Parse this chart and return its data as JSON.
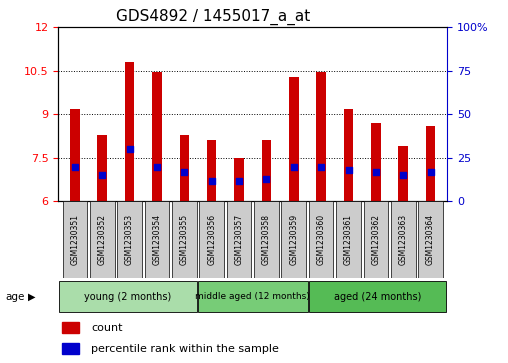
{
  "title": "GDS4892 / 1455017_a_at",
  "samples": [
    "GSM1230351",
    "GSM1230352",
    "GSM1230353",
    "GSM1230354",
    "GSM1230355",
    "GSM1230356",
    "GSM1230357",
    "GSM1230358",
    "GSM1230359",
    "GSM1230360",
    "GSM1230361",
    "GSM1230362",
    "GSM1230363",
    "GSM1230364"
  ],
  "count_values": [
    9.2,
    8.3,
    10.8,
    10.45,
    8.3,
    8.1,
    7.5,
    8.1,
    10.3,
    10.45,
    9.2,
    8.7,
    7.9,
    8.6
  ],
  "percentile_values": [
    20,
    15,
    30,
    20,
    17,
    12,
    12,
    13,
    20,
    20,
    18,
    17,
    15,
    17
  ],
  "ylim_left": [
    6,
    12
  ],
  "ylim_right": [
    0,
    100
  ],
  "yticks_left": [
    6,
    7.5,
    9,
    10.5,
    12
  ],
  "yticks_right": [
    0,
    25,
    50,
    75,
    100
  ],
  "bar_color": "#cc0000",
  "percentile_color": "#0000cc",
  "groups": [
    {
      "label": "young (2 months)",
      "start": 0,
      "end": 5
    },
    {
      "label": "middle aged (12 months)",
      "start": 5,
      "end": 9
    },
    {
      "label": "aged (24 months)",
      "start": 9,
      "end": 14
    }
  ],
  "group_colors": [
    "#aaddaa",
    "#77cc77",
    "#55bb55"
  ],
  "group_box_color": "#cccccc",
  "legend_count_label": "count",
  "legend_percentile_label": "percentile rank within the sample",
  "age_label": "age",
  "title_fontsize": 11,
  "tick_fontsize": 8,
  "bar_width": 0.35
}
